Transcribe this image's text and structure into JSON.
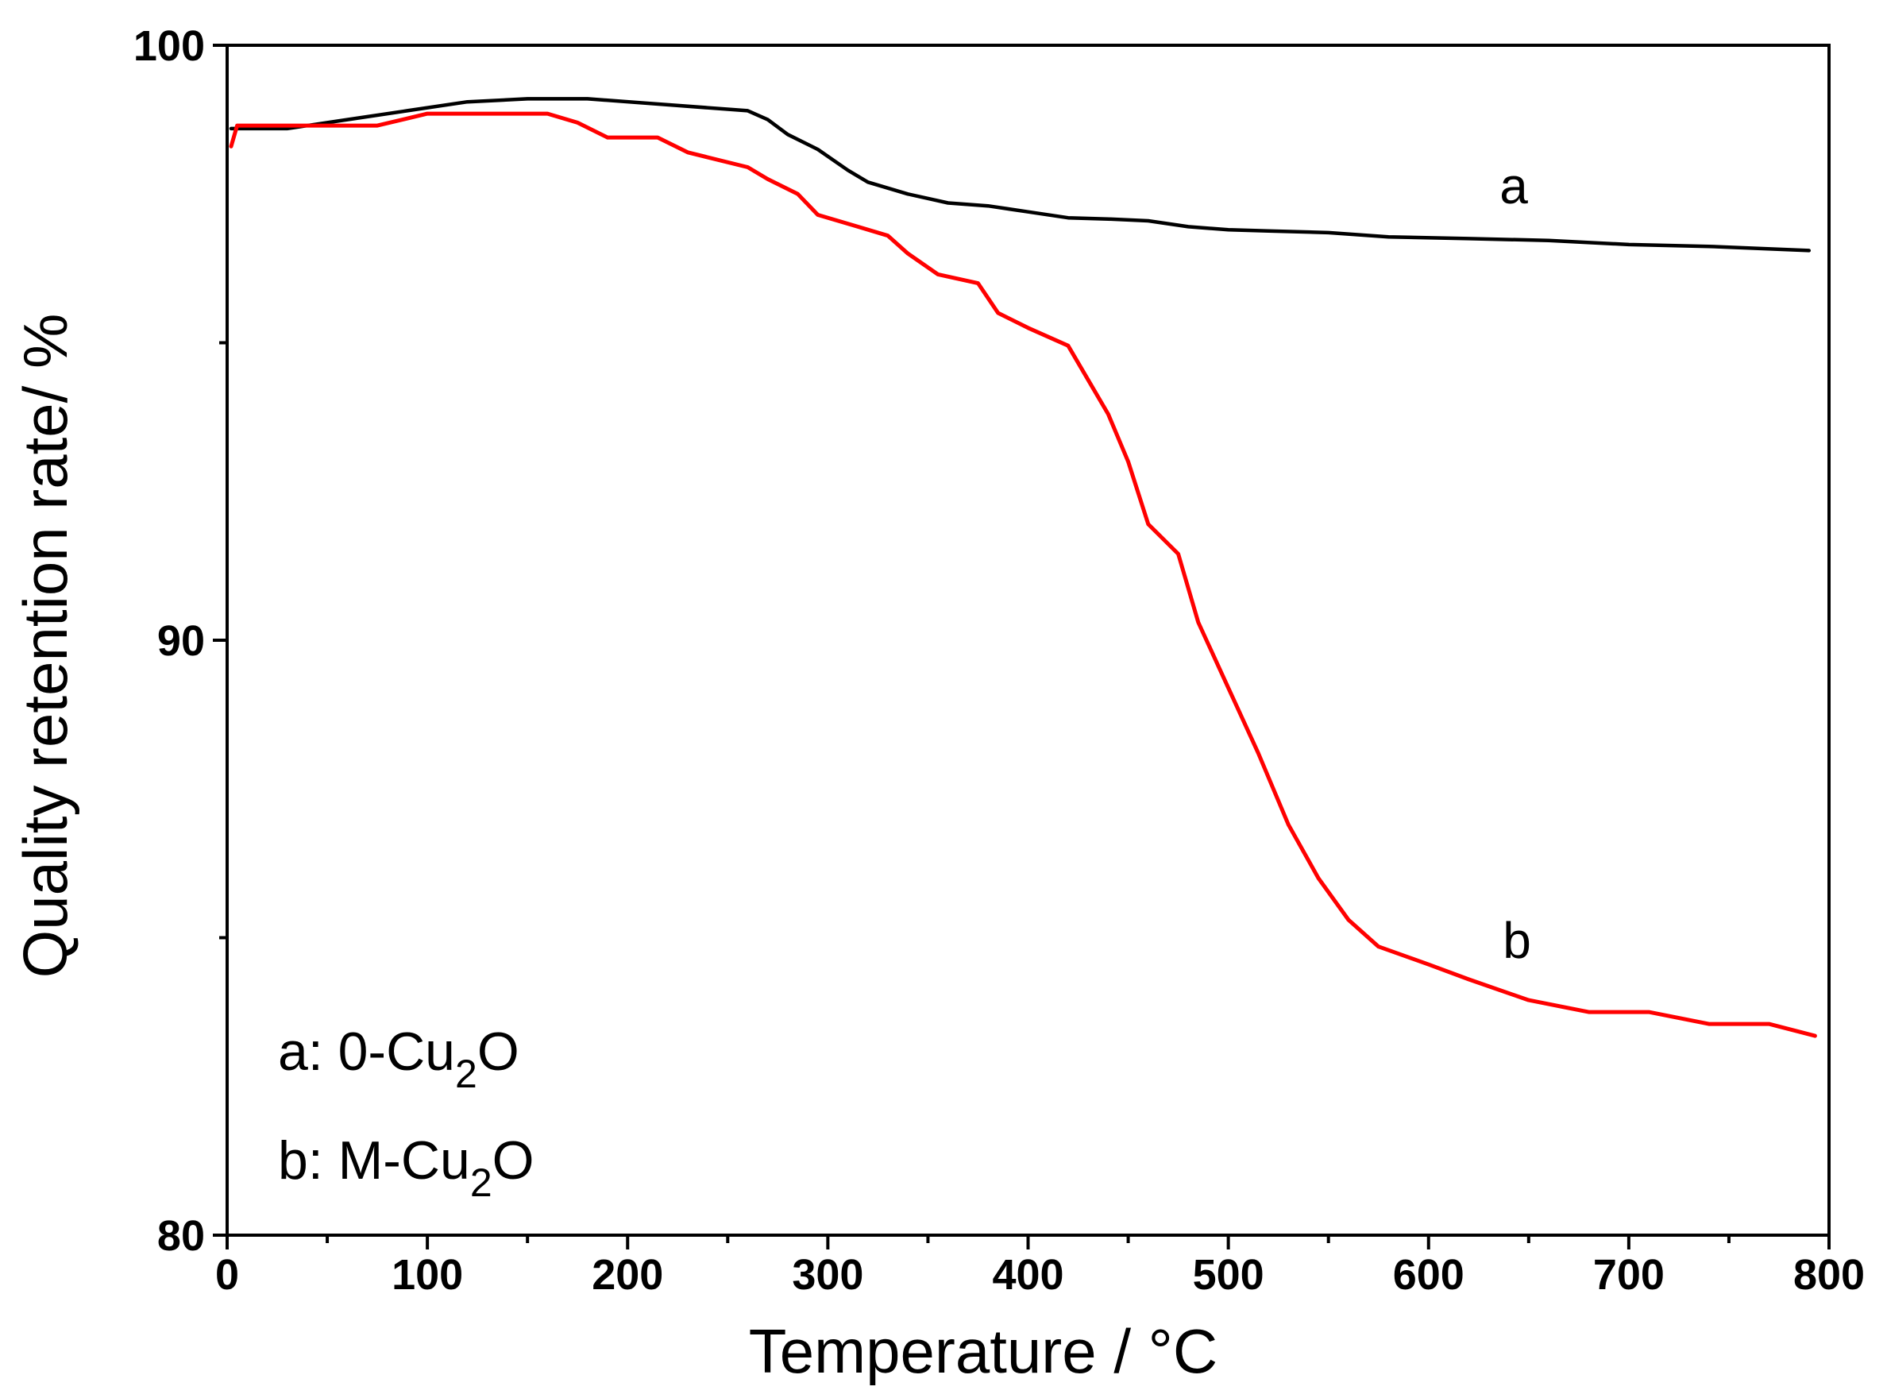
{
  "chart_data": {
    "type": "line",
    "title": "",
    "xlabel": "Temperature / °C",
    "ylabel": "Quality retention rate/ %",
    "xlim": [
      0,
      800
    ],
    "ylim": [
      80,
      100
    ],
    "x_ticks": [
      0,
      100,
      200,
      300,
      400,
      500,
      600,
      700,
      800
    ],
    "x_tick_labels": [
      "0",
      "100",
      "200",
      "300",
      "400",
      "500",
      "600",
      "700",
      "800"
    ],
    "y_ticks": [
      80,
      90,
      100
    ],
    "y_tick_labels": [
      "80",
      "90",
      "100"
    ],
    "grid": false,
    "series": [
      {
        "name": "a",
        "legend_label": "a: 0-Cu",
        "legend_sub": "2",
        "legend_tail": "O",
        "color": "#000000",
        "x": [
          2,
          30,
          60,
          90,
          120,
          150,
          180,
          220,
          260,
          270,
          280,
          295,
          310,
          320,
          340,
          360,
          380,
          400,
          420,
          440,
          460,
          480,
          500,
          520,
          550,
          580,
          620,
          660,
          700,
          740,
          790
        ],
        "y": [
          98.6,
          98.6,
          98.75,
          98.9,
          99.05,
          99.1,
          99.1,
          99.0,
          98.9,
          98.75,
          98.5,
          98.25,
          97.9,
          97.7,
          97.5,
          97.35,
          97.3,
          97.2,
          97.1,
          97.08,
          97.05,
          96.95,
          96.9,
          96.88,
          96.85,
          96.78,
          96.75,
          96.72,
          96.65,
          96.62,
          96.55
        ]
      },
      {
        "name": "b",
        "legend_label": "b: M-Cu",
        "legend_sub": "2",
        "legend_tail": "O",
        "color": "#ff0000",
        "x": [
          2,
          5,
          20,
          50,
          75,
          100,
          130,
          160,
          175,
          190,
          215,
          230,
          260,
          270,
          285,
          295,
          315,
          330,
          340,
          355,
          375,
          385,
          400,
          420,
          440,
          450,
          460,
          475,
          485,
          500,
          515,
          530,
          545,
          560,
          575,
          600,
          620,
          650,
          680,
          710,
          740,
          770,
          793
        ],
        "y": [
          98.3,
          98.65,
          98.65,
          98.65,
          98.65,
          98.85,
          98.85,
          98.85,
          98.7,
          98.45,
          98.45,
          98.2,
          97.95,
          97.75,
          97.5,
          97.15,
          96.95,
          96.8,
          96.5,
          96.15,
          96.0,
          95.5,
          95.25,
          94.95,
          93.8,
          93.0,
          91.95,
          91.45,
          90.3,
          89.2,
          88.1,
          86.9,
          86.0,
          85.3,
          84.85,
          84.55,
          84.3,
          83.95,
          83.75,
          83.75,
          83.55,
          83.55,
          83.35
        ]
      }
    ]
  }
}
